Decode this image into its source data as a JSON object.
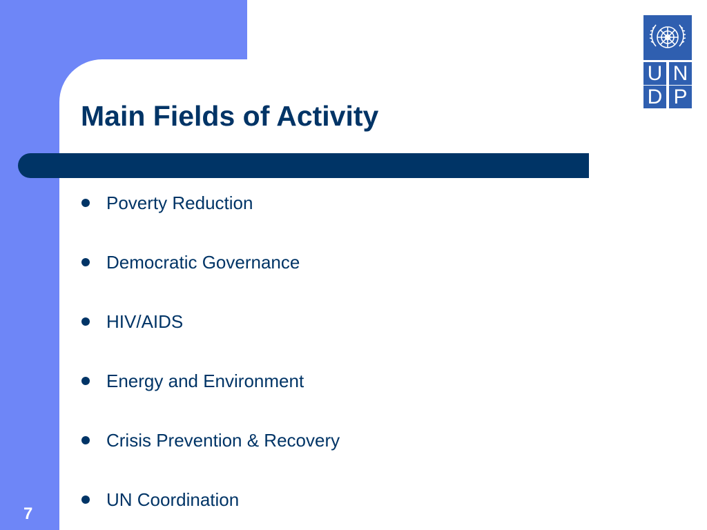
{
  "slide": {
    "title": "Main Fields of Activity",
    "page_number": "7",
    "colors": {
      "accent_band": "#6e86f7",
      "title_color": "#003466",
      "logo_blue": "#2f5fb0"
    }
  },
  "bullets": [
    {
      "label": "Poverty Reduction"
    },
    {
      "label": "Democratic Governance"
    },
    {
      "label": "HIV/AIDS"
    },
    {
      "label": "Energy and Environment"
    },
    {
      "label": "Crisis Prevention & Recovery"
    },
    {
      "label": "UN Coordination"
    }
  ],
  "logo": {
    "letters": [
      "U",
      "N",
      "D",
      "P"
    ],
    "emblem": "un-emblem-icon"
  }
}
